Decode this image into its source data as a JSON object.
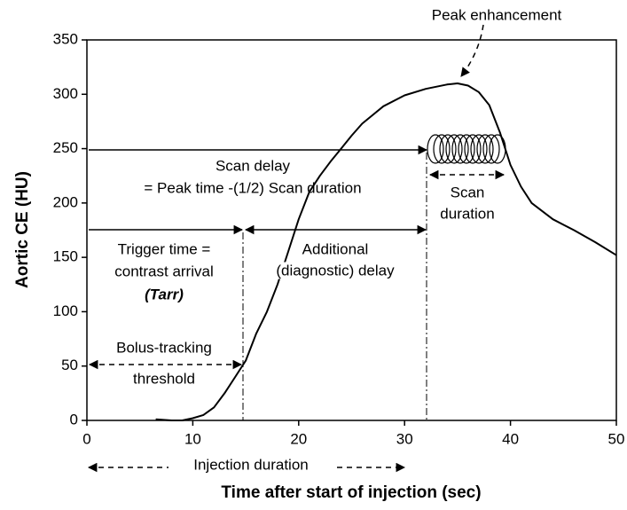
{
  "chart_data": {
    "type": "line",
    "xlabel": "Time after start of injection (sec)",
    "ylabel": "Aortic CE (HU)",
    "xlim": [
      0,
      50
    ],
    "xticks": [
      0,
      10,
      20,
      30,
      40,
      50
    ],
    "ylim": [
      0,
      350
    ],
    "yticks": [
      0,
      50,
      100,
      150,
      200,
      250,
      300,
      350
    ],
    "series": [
      {
        "color": "#000000",
        "x": [
          6.5,
          8,
          9,
          10,
          11,
          12,
          13,
          14,
          15,
          16,
          17,
          18,
          19,
          20,
          21,
          22,
          23,
          24,
          25,
          26,
          28,
          30,
          32,
          34,
          35,
          36,
          37,
          38,
          39,
          40,
          41,
          42,
          44,
          46,
          48,
          50
        ],
        "values": [
          1,
          0,
          0,
          2,
          5,
          12,
          25,
          40,
          55,
          80,
          100,
          125,
          155,
          185,
          210,
          225,
          238,
          250,
          262,
          273,
          289,
          299,
          305,
          309,
          310,
          308,
          302,
          290,
          265,
          235,
          215,
          200,
          185,
          175,
          164,
          152
        ]
      }
    ],
    "annotations": [
      "Peak enhancement",
      "Scan delay",
      "= Peak time -(1/2) Scan duration",
      "Scan",
      "duration",
      "Trigger time =",
      "contrast arrival",
      "(Tarr)",
      "Additional",
      "(diagnostic) delay",
      "Bolus-tracking",
      "threshold",
      "Injection duration"
    ]
  }
}
